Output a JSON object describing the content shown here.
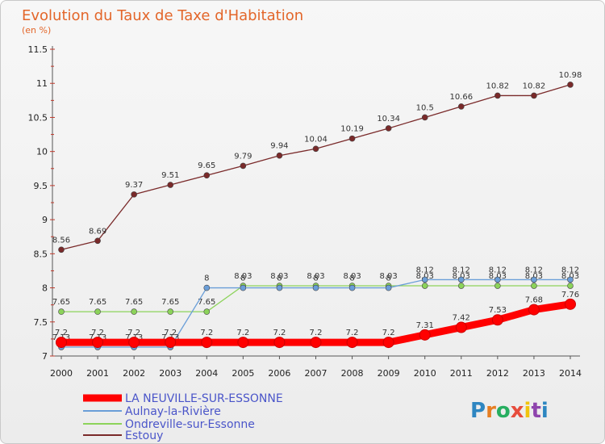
{
  "header": {
    "title": "Evolution du Taux de Taxe d'Habitation",
    "subtitle": "(en %)"
  },
  "logo": {
    "text": "Proxiti"
  },
  "chart_data": {
    "type": "line",
    "x": [
      "2000",
      "2001",
      "2002",
      "2003",
      "2004",
      "2005",
      "2006",
      "2007",
      "2008",
      "2009",
      "2010",
      "2011",
      "2012",
      "2013",
      "2014"
    ],
    "ylim": [
      7,
      11.5
    ],
    "yticks": [
      "7",
      "7.5",
      "8",
      "8.5",
      "9",
      "9.5",
      "10",
      "10.5",
      "11",
      "11.5"
    ],
    "legend_position": "bottom-left",
    "grid": false,
    "series": [
      {
        "name": "LA NEUVILLE-SUR-ESSONNE",
        "color": "#ff0000",
        "values": [
          7.2,
          7.2,
          7.2,
          7.2,
          7.2,
          7.2,
          7.2,
          7.2,
          7.2,
          7.2,
          7.31,
          7.42,
          7.53,
          7.68,
          7.76
        ],
        "labels": [
          "7.2",
          "7.2",
          "7.2",
          "7.2",
          "7.2",
          "7.2",
          "7.2",
          "7.2",
          "7.2",
          "7.2",
          "7.31",
          "7.42",
          "7.53",
          "7.68",
          "7.76"
        ]
      },
      {
        "name": "Aulnay-la-Rivière",
        "color": "#6a9ed8",
        "values": [
          7.13,
          7.13,
          7.13,
          7.13,
          8,
          8,
          8,
          8,
          8,
          8,
          8.12,
          8.12,
          8.12,
          8.12,
          8.12
        ],
        "labels": [
          "7.13",
          "7.13",
          "7.13",
          "7.13",
          "8",
          "8",
          "8",
          "8",
          "8",
          "8",
          "8.12",
          "8.12",
          "8.12",
          "8.12",
          "8.12"
        ]
      },
      {
        "name": "Ondreville-sur-Essonne",
        "color": "#8cd35a",
        "values": [
          7.65,
          7.65,
          7.65,
          7.65,
          7.65,
          8.03,
          8.03,
          8.03,
          8.03,
          8.03,
          8.03,
          8.03,
          8.03,
          8.03,
          8.03
        ],
        "labels": [
          "7.65",
          "7.65",
          "7.65",
          "7.65",
          "7.65",
          "8.03",
          "8.03",
          "8.03",
          "8.03",
          "8.03",
          "8.03",
          "8.03",
          "8.03",
          "8.03",
          "8.03"
        ]
      },
      {
        "name": "Estouy",
        "color": "#7a2a2a",
        "values": [
          8.56,
          8.69,
          9.37,
          9.51,
          9.65,
          9.79,
          9.94,
          10.04,
          10.19,
          10.34,
          10.5,
          10.66,
          10.82,
          10.82,
          10.98
        ],
        "labels": [
          "8.56",
          "8.69",
          "9.37",
          "9.51",
          "9.65",
          "9.79",
          "9.94",
          "10.04",
          "10.19",
          "10.34",
          "10.5",
          "10.66",
          "10.82",
          "10.82",
          "10.98"
        ]
      }
    ]
  }
}
